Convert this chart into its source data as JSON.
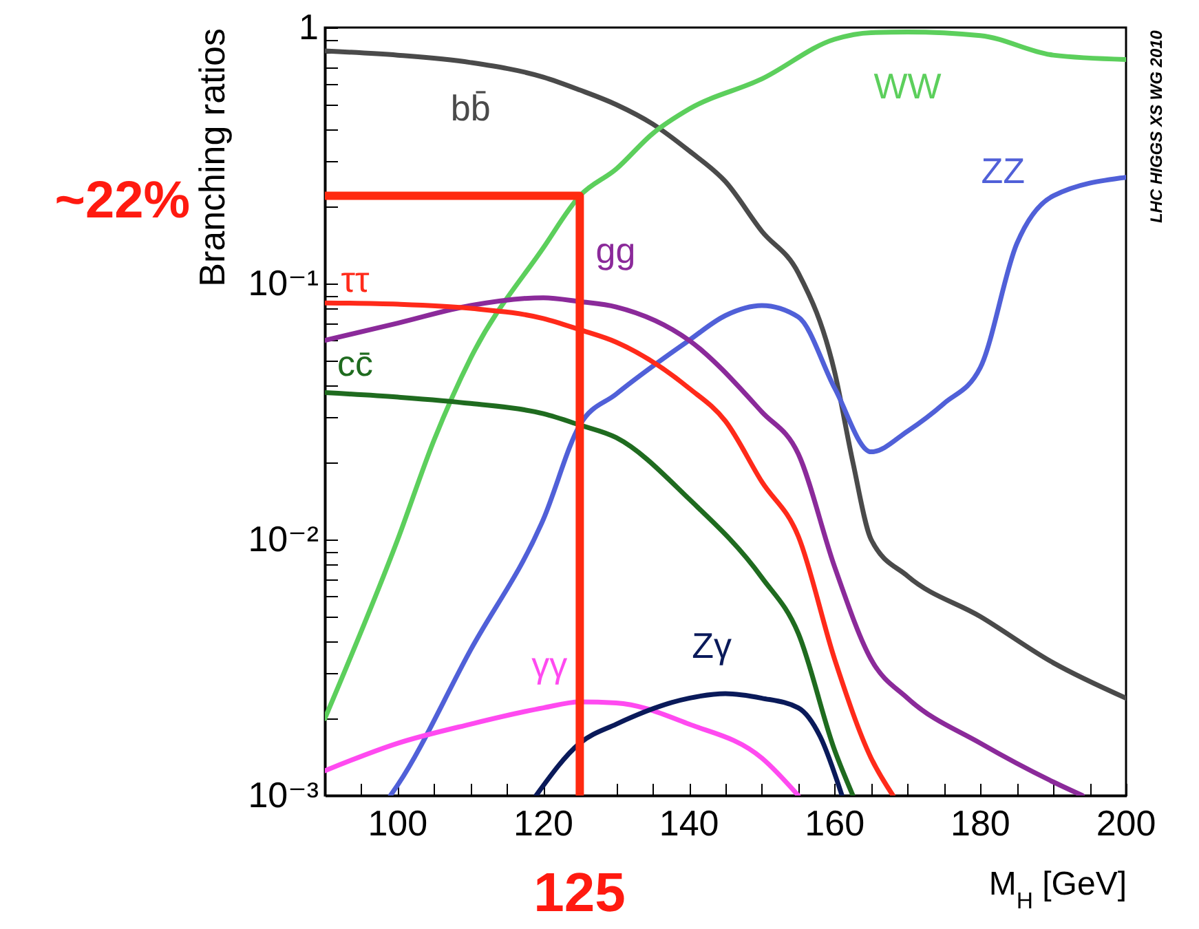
{
  "chart_data": {
    "type": "line",
    "xlabel": "M$_{H}$ [GeV]",
    "ylabel": "Branching ratios",
    "log": "y",
    "xlim": [
      90,
      200
    ],
    "ylim": [
      0.001,
      1
    ],
    "xticks": [
      {
        "value": 95,
        "label": null
      },
      {
        "value": 100,
        "label": "100"
      },
      {
        "value": 105,
        "label": null
      },
      {
        "value": 110,
        "label": null
      },
      {
        "value": 115,
        "label": null
      },
      {
        "value": 120,
        "label": "120"
      },
      {
        "value": 125,
        "label": null
      },
      {
        "value": 130,
        "label": null
      },
      {
        "value": 135,
        "label": null
      },
      {
        "value": 140,
        "label": "140"
      },
      {
        "value": 145,
        "label": null
      },
      {
        "value": 150,
        "label": null
      },
      {
        "value": 155,
        "label": null
      },
      {
        "value": 160,
        "label": "160"
      },
      {
        "value": 165,
        "label": null
      },
      {
        "value": 170,
        "label": null
      },
      {
        "value": 175,
        "label": null
      },
      {
        "value": 180,
        "label": "180"
      },
      {
        "value": 185,
        "label": null
      },
      {
        "value": 190,
        "label": null
      },
      {
        "value": 195,
        "label": null
      },
      {
        "value": 200,
        "label": "200"
      }
    ],
    "yticks": [
      {
        "value": 0.001,
        "label": "10⁻³"
      },
      {
        "value": 0.002,
        "label": null
      },
      {
        "value": 0.003,
        "label": null
      },
      {
        "value": 0.004,
        "label": null
      },
      {
        "value": 0.005,
        "label": null
      },
      {
        "value": 0.006,
        "label": null
      },
      {
        "value": 0.007,
        "label": null
      },
      {
        "value": 0.008,
        "label": null
      },
      {
        "value": 0.009,
        "label": null
      },
      {
        "value": 0.01,
        "label": "10⁻²"
      },
      {
        "value": 0.02,
        "label": null
      },
      {
        "value": 0.03,
        "label": null
      },
      {
        "value": 0.04,
        "label": null
      },
      {
        "value": 0.05,
        "label": null
      },
      {
        "value": 0.06,
        "label": null
      },
      {
        "value": 0.07,
        "label": null
      },
      {
        "value": 0.08,
        "label": null
      },
      {
        "value": 0.09,
        "label": null
      },
      {
        "value": 0.1,
        "label": "10⁻¹"
      },
      {
        "value": 0.2,
        "label": null
      },
      {
        "value": 0.3,
        "label": null
      },
      {
        "value": 0.4,
        "label": null
      },
      {
        "value": 0.5,
        "label": null
      },
      {
        "value": 0.6,
        "label": null
      },
      {
        "value": 0.7,
        "label": null
      },
      {
        "value": 0.8,
        "label": null
      },
      {
        "value": 0.9,
        "label": null
      },
      {
        "value": 1,
        "label": "1"
      }
    ],
    "series": [
      {
        "name": "bb̄",
        "color": "#4a4a4a",
        "x": [
          90,
          100,
          110,
          120,
          125,
          130,
          135,
          140,
          145,
          150,
          155,
          160,
          162.5,
          165,
          170,
          180,
          190,
          200
        ],
        "values": [
          0.81,
          0.78,
          0.73,
          0.64,
          0.57,
          0.5,
          0.42,
          0.33,
          0.25,
          0.16,
          0.11,
          0.045,
          0.02,
          0.01,
          0.0072,
          0.005,
          0.0033,
          0.0024
        ]
      },
      {
        "name": "WW",
        "color": "#5ccf5c",
        "x": [
          90,
          100,
          105,
          110,
          120,
          125,
          130,
          135,
          140,
          150,
          160,
          165,
          170,
          180,
          190,
          200
        ],
        "values": [
          0.002,
          0.01,
          0.0245,
          0.051,
          0.138,
          0.22,
          0.28,
          0.385,
          0.48,
          0.63,
          0.9,
          0.955,
          0.96,
          0.93,
          0.78,
          0.75
        ]
      },
      {
        "name": "ZZ",
        "color": "#5060d8",
        "x": [
          99,
          100,
          110,
          120,
          125,
          130,
          140,
          145,
          150,
          155,
          160,
          165,
          170,
          175,
          180,
          185,
          190,
          200
        ],
        "values": [
          0.001,
          0.0011,
          0.0037,
          0.012,
          0.028,
          0.037,
          0.06,
          0.075,
          0.082,
          0.074,
          0.039,
          0.022,
          0.0265,
          0.034,
          0.047,
          0.143,
          0.22,
          0.26
        ]
      },
      {
        "name": "gg",
        "color": "#8b2a9a",
        "x": [
          90,
          100,
          110,
          120,
          125,
          130,
          140,
          150,
          155,
          160,
          165,
          170,
          180,
          190,
          194
        ],
        "values": [
          0.06,
          0.07,
          0.082,
          0.088,
          0.085,
          0.081,
          0.06,
          0.0315,
          0.0216,
          0.0078,
          0.0034,
          0.0024,
          0.0016,
          0.00113,
          0.001
        ]
      },
      {
        "name": "ττ",
        "color": "#ff2a1a",
        "x": [
          90,
          100,
          110,
          120,
          125,
          130,
          140,
          145,
          150,
          155,
          160,
          165,
          168
        ],
        "values": [
          0.084,
          0.083,
          0.08,
          0.073,
          0.066,
          0.059,
          0.039,
          0.029,
          0.0168,
          0.0103,
          0.0034,
          0.0014,
          0.001
        ]
      },
      {
        "name": "cc̄",
        "color": "#1f6b1f",
        "x": [
          90,
          100,
          110,
          120,
          125,
          130,
          140,
          150,
          155,
          160,
          162.5
        ],
        "values": [
          0.0375,
          0.036,
          0.034,
          0.031,
          0.028,
          0.025,
          0.0144,
          0.0071,
          0.0043,
          0.0015,
          0.001
        ]
      },
      {
        "name": "γγ",
        "color": "#ff4af0",
        "x": [
          90,
          100,
          110,
          120,
          125,
          130,
          140,
          150,
          155
        ],
        "values": [
          0.00125,
          0.0016,
          0.0019,
          0.0022,
          0.00232,
          0.0023,
          0.0019,
          0.0014,
          0.001
        ]
      },
      {
        "name": "Zγ",
        "color": "#0a1a5a",
        "x": [
          119,
          125,
          130,
          140,
          145,
          150,
          155,
          158,
          161
        ],
        "values": [
          0.001,
          0.0016,
          0.0019,
          0.0024,
          0.0025,
          0.0024,
          0.0022,
          0.0017,
          0.001
        ]
      },
      {
        "color": "#ff2a10",
        "x": [
          90,
          125,
          125
        ],
        "values": [
          0.22,
          0.22,
          0.001
        ]
      }
    ],
    "annotations": [
      "~22%",
      "125",
      "LHC HIGGS XS WG 2010"
    ]
  }
}
